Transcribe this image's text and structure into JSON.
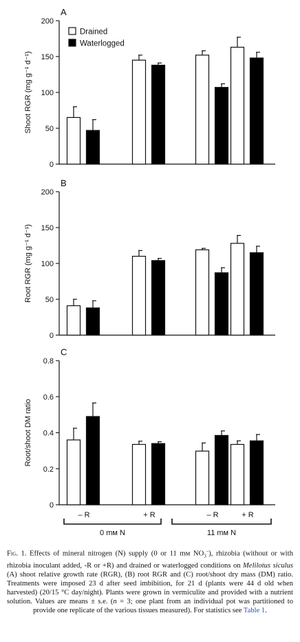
{
  "chart_data": [
    {
      "panel": "A",
      "type": "bar",
      "ylabel": "Shoot RGR (mg g⁻¹ d⁻¹)",
      "ylim": [
        0,
        200
      ],
      "yticks": [
        "0",
        "50",
        "100",
        "150",
        "200"
      ],
      "categories": [
        "– R",
        "+ R",
        "– R",
        "+ R"
      ],
      "legend": "top-left",
      "series": [
        {
          "name": "Drained",
          "color": "#ffffff",
          "values": [
            65,
            145,
            152,
            163
          ],
          "errors": [
            15,
            7,
            6,
            14
          ]
        },
        {
          "name": "Waterlogged",
          "color": "#000000",
          "values": [
            47,
            138,
            107,
            148
          ],
          "errors": [
            15,
            3,
            5,
            8
          ]
        }
      ]
    },
    {
      "panel": "B",
      "type": "bar",
      "ylabel": "Root RGR (mg g⁻¹ d⁻¹)",
      "ylim": [
        0,
        200
      ],
      "yticks": [
        "0",
        "50",
        "100",
        "150",
        "200"
      ],
      "categories": [
        "– R",
        "+ R",
        "– R",
        "+ R"
      ],
      "series": [
        {
          "name": "Drained",
          "color": "#ffffff",
          "values": [
            41,
            110,
            119,
            128
          ],
          "errors": [
            9,
            8,
            2,
            11
          ]
        },
        {
          "name": "Waterlogged",
          "color": "#000000",
          "values": [
            38,
            104,
            87,
            115
          ],
          "errors": [
            10,
            3,
            7,
            9
          ]
        }
      ]
    },
    {
      "panel": "C",
      "type": "bar",
      "ylabel": "Root/shoot DM ratio",
      "ylim": [
        0,
        0.8
      ],
      "yticks": [
        "0",
        "0.2",
        "0.4",
        "0.6",
        "0.8"
      ],
      "categories": [
        "– R",
        "+ R",
        "– R",
        "+ R"
      ],
      "series": [
        {
          "name": "Drained",
          "color": "#ffffff",
          "values": [
            0.36,
            0.335,
            0.298,
            0.335
          ],
          "errors": [
            0.065,
            0.018,
            0.045,
            0.02
          ]
        },
        {
          "name": "Waterlogged",
          "color": "#000000",
          "values": [
            0.49,
            0.34,
            0.385,
            0.355
          ],
          "errors": [
            0.075,
            0.01,
            0.025,
            0.035
          ]
        }
      ],
      "groups": [
        "0 mᴍ N",
        "11 mᴍ N"
      ]
    }
  ],
  "caption": {
    "lead": "Fig. 1.",
    "part1": " Effects of mineral nitrogen (N) supply (0 or 11 mᴍ NO",
    "sub": "3",
    "sup": "–",
    "part2": "), rhizobia (without or with rhizobia inoculant added, -R or +R) and drained or waterlogged conditions on ",
    "species": "Melilotus siculus",
    "part3": " (A) shoot relative growth rate (RGR), (B) root RGR and (C) root/shoot dry mass (DM) ratio. Treatments were imposed 23 d after seed imbibition, for 21 d (plants were 44 d old when harvested) (20/15 °C day/night). Plants were grown in vermiculite and provided with a nutrient solution. Values are means ± s.e. (",
    "n": "n",
    "part4": " = 3; one plant from an individual pot was partitioned to provide one replicate of the various tissues measured). For statistics see ",
    "link": "Table 1",
    "end": "."
  }
}
